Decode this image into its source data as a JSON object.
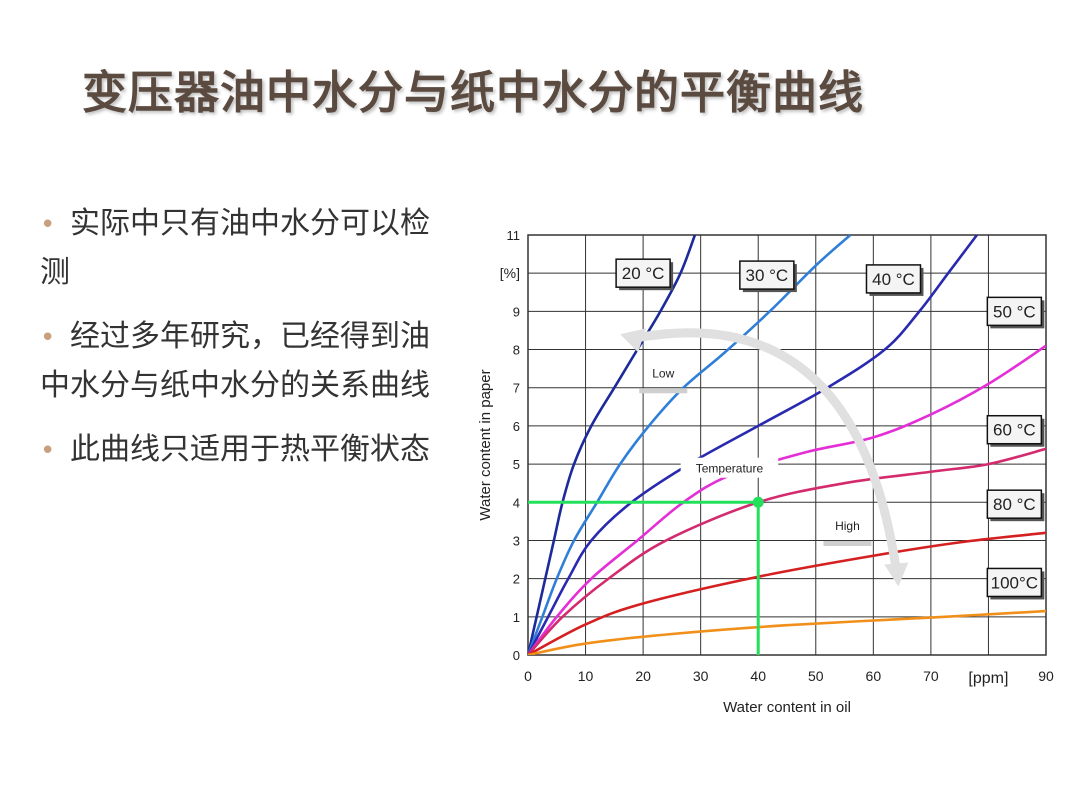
{
  "slide": {
    "title": "变压器油中水分与纸中水分的平衡曲线",
    "bullets": [
      "实际中只有油中水分可以检测",
      "经过多年研究，已经得到油中水分与纸中水分的关系曲线",
      "此曲线只适用于热平衡状态"
    ]
  },
  "chart_data": {
    "type": "line",
    "xlabel": "Water content in oil",
    "ylabel": "Water content in paper",
    "x_unit": "[ppm]",
    "y_unit": "[%]",
    "xlim": [
      0,
      90
    ],
    "ylim": [
      0,
      11
    ],
    "x_ticks": [
      0,
      10,
      20,
      30,
      40,
      50,
      60,
      70,
      90
    ],
    "y_ticks": [
      0,
      1,
      2,
      3,
      4,
      5,
      6,
      7,
      8,
      9,
      11
    ],
    "grid": true,
    "series": [
      {
        "name": "20 °C",
        "color": "#1c2a9a",
        "points": [
          [
            0,
            0
          ],
          [
            1.5,
            1
          ],
          [
            3,
            2
          ],
          [
            4.5,
            3
          ],
          [
            6,
            4
          ],
          [
            8,
            5
          ],
          [
            11,
            6
          ],
          [
            15,
            7
          ],
          [
            19,
            8
          ],
          [
            23,
            9
          ],
          [
            26.5,
            10
          ],
          [
            29,
            11
          ]
        ]
      },
      {
        "name": "30 °C",
        "color": "#2f7fd8",
        "points": [
          [
            0,
            0
          ],
          [
            2.5,
            1
          ],
          [
            5,
            2
          ],
          [
            8,
            3
          ],
          [
            12,
            4
          ],
          [
            16,
            5
          ],
          [
            21,
            6
          ],
          [
            27,
            7
          ],
          [
            34,
            7.9
          ],
          [
            42,
            9
          ],
          [
            50,
            10.2
          ],
          [
            56,
            11
          ]
        ]
      },
      {
        "name": "40 °C",
        "color": "#2a2ab0",
        "points": [
          [
            0,
            0
          ],
          [
            3.5,
            1
          ],
          [
            7,
            2
          ],
          [
            11,
            3
          ],
          [
            18,
            4
          ],
          [
            28,
            5
          ],
          [
            40,
            6
          ],
          [
            52,
            7
          ],
          [
            62,
            8
          ],
          [
            68,
            9
          ],
          [
            73,
            10
          ],
          [
            78,
            11
          ]
        ]
      },
      {
        "name": "50 °C",
        "color": "#e42ed6",
        "points": [
          [
            0,
            0
          ],
          [
            5,
            1
          ],
          [
            11,
            2
          ],
          [
            19,
            3
          ],
          [
            27,
            4
          ],
          [
            35,
            4.7
          ],
          [
            48,
            5.3
          ],
          [
            60,
            5.7
          ],
          [
            70,
            6.3
          ],
          [
            80,
            7.1
          ],
          [
            90,
            8.1
          ]
        ]
      },
      {
        "name": "60 °C",
        "color": "#d42a6e",
        "points": [
          [
            0,
            0
          ],
          [
            6,
            1
          ],
          [
            14,
            2
          ],
          [
            24,
            3
          ],
          [
            40,
            4
          ],
          [
            55,
            4.5
          ],
          [
            70,
            4.8
          ],
          [
            80,
            5
          ],
          [
            90,
            5.4
          ]
        ]
      },
      {
        "name": "80 °C",
        "color": "#d42020",
        "points": [
          [
            0,
            0
          ],
          [
            10,
            0.8
          ],
          [
            20,
            1.35
          ],
          [
            40,
            2.05
          ],
          [
            60,
            2.6
          ],
          [
            75,
            2.95
          ],
          [
            90,
            3.2
          ]
        ]
      },
      {
        "name": "100°C",
        "color": "#f0901a",
        "points": [
          [
            0,
            0
          ],
          [
            10,
            0.3
          ],
          [
            25,
            0.55
          ],
          [
            45,
            0.78
          ],
          [
            70,
            0.98
          ],
          [
            90,
            1.15
          ]
        ]
      }
    ],
    "annotations": {
      "low": "Low",
      "temperature": "Temperature",
      "high": "High"
    },
    "highlight": {
      "x": 40,
      "y": 4,
      "color": "#22e05a"
    },
    "colors": {
      "grid": "#333333",
      "arrow": "#e0e0e0",
      "highlight": "#22e05a",
      "label_box": "#f4f4f4"
    }
  }
}
